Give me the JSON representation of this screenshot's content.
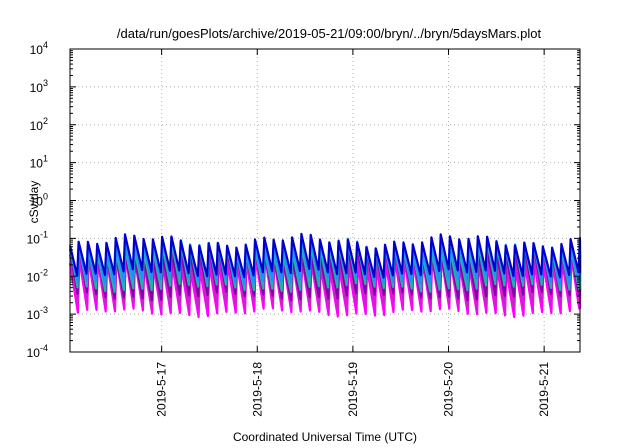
{
  "chart_data": {
    "type": "line",
    "title": "/data/run/goesPlots/archive/2019-05-21/09:00/bryn/../bryn/5daysMars.plot",
    "xlabel": "Coordinated Universal Time (UTC)",
    "ylabel": "cSv/day",
    "yscale": "log",
    "ylim": [
      0.0001,
      10000
    ],
    "xlim": [
      "2019-05-16 01:00",
      "2019-05-21 09:00"
    ],
    "yticks": [
      {
        "base": "10",
        "exp": "-4"
      },
      {
        "base": "10",
        "exp": "-3"
      },
      {
        "base": "10",
        "exp": "-2"
      },
      {
        "base": "10",
        "exp": "-1"
      },
      {
        "base": "10",
        "exp": "0"
      },
      {
        "base": "10",
        "exp": "1"
      },
      {
        "base": "10",
        "exp": "2"
      },
      {
        "base": "10",
        "exp": "3"
      },
      {
        "base": "10",
        "exp": "4"
      }
    ],
    "xticks": [
      "2019-5-17",
      "2019-5-18",
      "2019-5-19",
      "2019-5-20",
      "2019-5-21"
    ],
    "grid": true,
    "cycles_per_day": 10.3,
    "series": [
      {
        "color": "#ff00ff",
        "peak": 0.022,
        "trough": 0.0011
      },
      {
        "color": "#cc22cc",
        "peak": 0.03,
        "trough": 0.0018
      },
      {
        "color": "#8800aa",
        "peak": 0.04,
        "trough": 0.003
      },
      {
        "color": "#20b2aa",
        "peak": 0.055,
        "trough": 0.005
      },
      {
        "color": "#1e90ff",
        "peak": 0.07,
        "trough": 0.008
      },
      {
        "color": "#0000cd",
        "peak": 0.085,
        "trough": 0.012
      }
    ]
  }
}
